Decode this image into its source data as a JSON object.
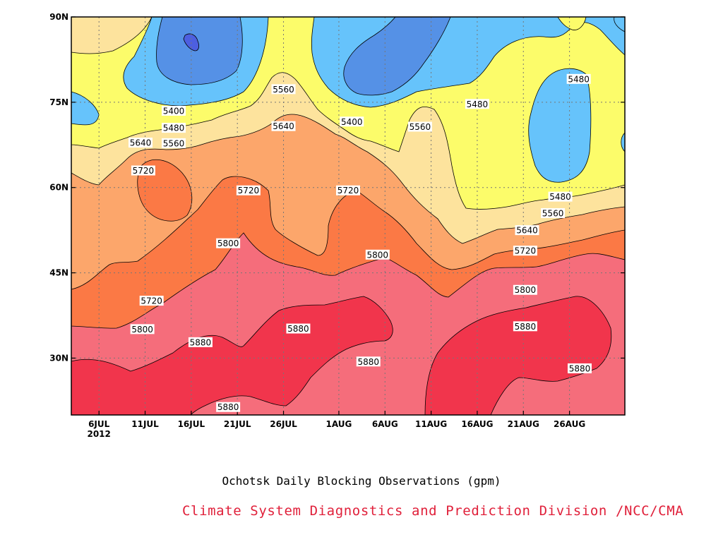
{
  "chart_data": {
    "type": "heatmap",
    "subtype": "latitude-time contour plot",
    "title": "Ochotsk Daily Blocking Observations (gpm)",
    "credit": "Climate System Diagnostics and Prediction Division /NCC/CMA",
    "xlabel": "",
    "ylabel": "",
    "x_ticks": [
      {
        "label": "6JUL",
        "sub": "2012",
        "day": 6
      },
      {
        "label": "11JUL",
        "day": 11
      },
      {
        "label": "16JUL",
        "day": 16
      },
      {
        "label": "21JUL",
        "day": 21
      },
      {
        "label": "26JUL",
        "day": 26
      },
      {
        "label": "1AUG",
        "day": 32
      },
      {
        "label": "6AUG",
        "day": 37
      },
      {
        "label": "11AUG",
        "day": 42
      },
      {
        "label": "16AUG",
        "day": 47
      },
      {
        "label": "21AUG",
        "day": 52
      },
      {
        "label": "26AUG",
        "day": 57
      }
    ],
    "x_range_day_of_july": [
      3,
      63
    ],
    "y_ticks": [
      {
        "label": "30N",
        "lat": 30
      },
      {
        "label": "45N",
        "lat": 45
      },
      {
        "label": "60N",
        "lat": 60
      },
      {
        "label": "75N",
        "lat": 75
      },
      {
        "label": "90N",
        "lat": 90
      }
    ],
    "y_range_lat": [
      20,
      90
    ],
    "grid": "dotted",
    "contour_levels": [
      5400,
      5480,
      5560,
      5640,
      5720,
      5800,
      5880
    ],
    "color_bands": [
      {
        "range": "<5320",
        "color": "#4d5fe0"
      },
      {
        "range": "5320-5400",
        "color": "#5591e6"
      },
      {
        "range": "5400-5480",
        "color": "#66c3fb"
      },
      {
        "range": "5480-5560",
        "color": "#fcfc6a"
      },
      {
        "range": "5560-5640",
        "color": "#fde39d"
      },
      {
        "range": "5640-5720",
        "color": "#fca66b"
      },
      {
        "range": "5720-5800",
        "color": "#fb7945"
      },
      {
        "range": "5800-5880",
        "color": "#f56d7b"
      },
      {
        "range": ">5880",
        "color": "#f1354c"
      }
    ],
    "contour_labels": [
      {
        "text": "5400",
        "day": 14.1,
        "lat": 73.5
      },
      {
        "text": "5480",
        "day": 14.1,
        "lat": 70.5
      },
      {
        "text": "5560",
        "day": 14.1,
        "lat": 67.8
      },
      {
        "text": "5640",
        "day": 10.5,
        "lat": 67.9
      },
      {
        "text": "5720",
        "day": 10.8,
        "lat": 63.0
      },
      {
        "text": "5560",
        "day": 26.0,
        "lat": 77.3
      },
      {
        "text": "5640",
        "day": 26.0,
        "lat": 70.8
      },
      {
        "text": "5720",
        "day": 22.2,
        "lat": 59.5
      },
      {
        "text": "5800",
        "day": 20.0,
        "lat": 50.2
      },
      {
        "text": "5720",
        "day": 11.7,
        "lat": 40.1
      },
      {
        "text": "5800",
        "day": 10.7,
        "lat": 35.1
      },
      {
        "text": "5880",
        "day": 17.0,
        "lat": 32.8
      },
      {
        "text": "5880",
        "day": 27.6,
        "lat": 35.2
      },
      {
        "text": "5880",
        "day": 20.0,
        "lat": 21.4
      },
      {
        "text": "5400",
        "day": 33.4,
        "lat": 71.6
      },
      {
        "text": "5720",
        "day": 33.0,
        "lat": 59.5
      },
      {
        "text": "5800",
        "day": 36.2,
        "lat": 48.2
      },
      {
        "text": "5880",
        "day": 35.2,
        "lat": 29.4
      },
      {
        "text": "5560",
        "day": 40.8,
        "lat": 70.7
      },
      {
        "text": "5480",
        "day": 47.0,
        "lat": 74.7
      },
      {
        "text": "5480",
        "day": 58.0,
        "lat": 79.1
      },
      {
        "text": "5480",
        "day": 56.0,
        "lat": 58.4
      },
      {
        "text": "5560",
        "day": 55.2,
        "lat": 55.5
      },
      {
        "text": "5640",
        "day": 52.4,
        "lat": 52.5
      },
      {
        "text": "5720",
        "day": 52.2,
        "lat": 48.9
      },
      {
        "text": "5800",
        "day": 52.2,
        "lat": 42.0
      },
      {
        "text": "5880",
        "day": 52.2,
        "lat": 35.6
      },
      {
        "text": "5880",
        "day": 58.1,
        "lat": 28.2
      }
    ]
  }
}
